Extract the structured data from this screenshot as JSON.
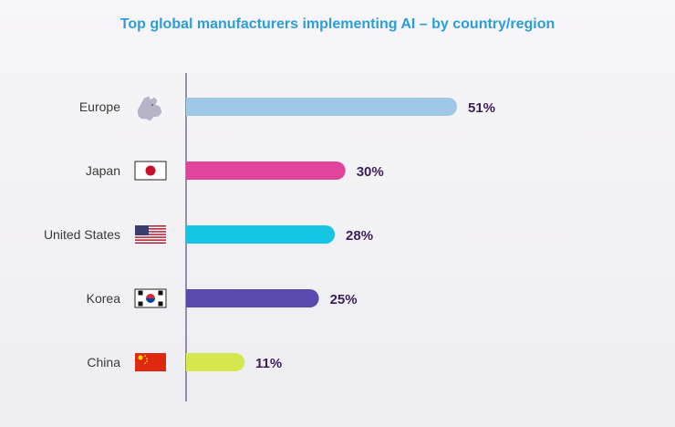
{
  "chart_data": {
    "type": "bar",
    "orientation": "horizontal",
    "title": "Top global manufacturers implementing AI – by country/region",
    "categories": [
      "Europe",
      "Japan",
      "United States",
      "Korea",
      "China"
    ],
    "values": [
      51,
      30,
      28,
      25,
      11
    ],
    "value_labels": [
      "51%",
      "30%",
      "28%",
      "25%",
      "11%"
    ],
    "colors": [
      "#9ec8e6",
      "#e0449b",
      "#16c4e4",
      "#5a4aae",
      "#d4e84e"
    ],
    "icons": [
      "europe-map-icon",
      "japan-flag-icon",
      "us-flag-icon",
      "korea-flag-icon",
      "china-flag-icon"
    ],
    "xlabel": "",
    "ylabel": "",
    "xlim": [
      0,
      51
    ],
    "grid": false,
    "legend": "none"
  }
}
